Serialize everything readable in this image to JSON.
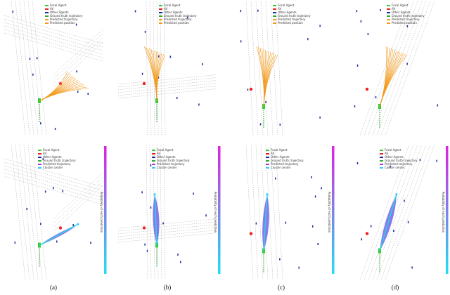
{
  "figure": {
    "panels": [
      {
        "label": "(a)"
      },
      {
        "label": "(b)"
      },
      {
        "label": "(c)"
      },
      {
        "label": "(d)"
      }
    ],
    "top_legend": [
      "Focal Agent",
      "AV",
      "Other Agents",
      "Ground truth trajectory",
      "Predicted trajectory",
      "Predicted position"
    ],
    "bottom_legend": [
      "Focal Agent",
      "AV",
      "Other Agents",
      "Ground truth trajectory",
      "Predicted trajectory",
      "Cluster center"
    ],
    "colorbar_label": "Probability of each prediction"
  }
}
